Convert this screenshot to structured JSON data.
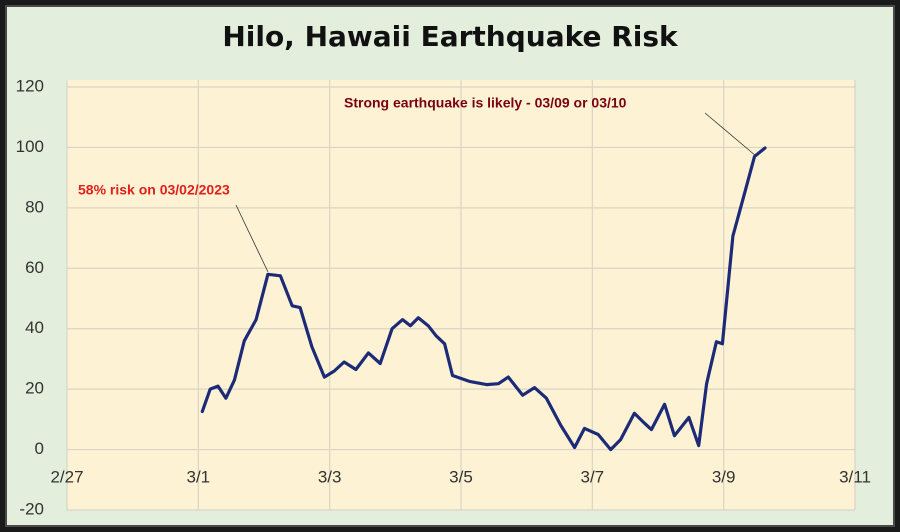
{
  "chart_data": {
    "type": "line",
    "title": "Hilo, Hawaii Earthquake Risk",
    "x": [
      2.06,
      2.18,
      2.3,
      2.42,
      2.55,
      2.7,
      2.88,
      3.06,
      3.25,
      3.43,
      3.55,
      3.73,
      3.92,
      4.07,
      4.22,
      4.4,
      4.59,
      4.77,
      4.95,
      5.11,
      5.23,
      5.35,
      5.5,
      5.62,
      5.75,
      5.87,
      6.14,
      6.39,
      6.57,
      6.72,
      6.94,
      7.12,
      7.3,
      7.52,
      7.73,
      7.88,
      8.09,
      8.28,
      8.43,
      8.64,
      8.8,
      8.9,
      9.1,
      9.25,
      9.47,
      9.62,
      9.74,
      9.89,
      9.98,
      10.14,
      10.32,
      10.47,
      10.63
    ],
    "series": [
      {
        "name": "Risk",
        "color": "#1c2a78",
        "values": [
          12.6,
          20,
          21,
          17,
          23,
          36,
          43,
          58,
          57.5,
          47.6,
          47,
          34,
          24,
          26,
          29,
          26.5,
          32,
          28.5,
          40,
          43,
          41,
          43.6,
          41,
          37.7,
          35,
          24.5,
          22.5,
          21.5,
          21.8,
          24,
          18,
          20.5,
          17,
          8,
          0.7,
          7,
          5,
          0,
          3.3,
          12,
          8.6,
          6.6,
          15,
          4.6,
          10.6,
          1.3,
          21.8,
          35.7,
          35,
          70.7,
          85,
          97,
          99.8
        ]
      }
    ],
    "xlim": [
      0,
      12
    ],
    "xticks": [
      {
        "value": 0,
        "label": "2/27"
      },
      {
        "value": 2,
        "label": "3/1"
      },
      {
        "value": 4,
        "label": "3/3"
      },
      {
        "value": 6,
        "label": "3/5"
      },
      {
        "value": 8,
        "label": "3/7"
      },
      {
        "value": 10,
        "label": "3/9"
      },
      {
        "value": 12,
        "label": "3/11"
      }
    ],
    "ylim": [
      -20,
      120
    ],
    "yticks": [
      -20,
      0,
      20,
      40,
      60,
      80,
      100,
      120
    ],
    "grid": true,
    "annotations": [
      {
        "text": "58% risk on 03/02/2023",
        "color": "#e0201c"
      },
      {
        "text": "Strong earthquake is likely - 03/09 or 03/10",
        "color": "#7a0012"
      }
    ]
  }
}
